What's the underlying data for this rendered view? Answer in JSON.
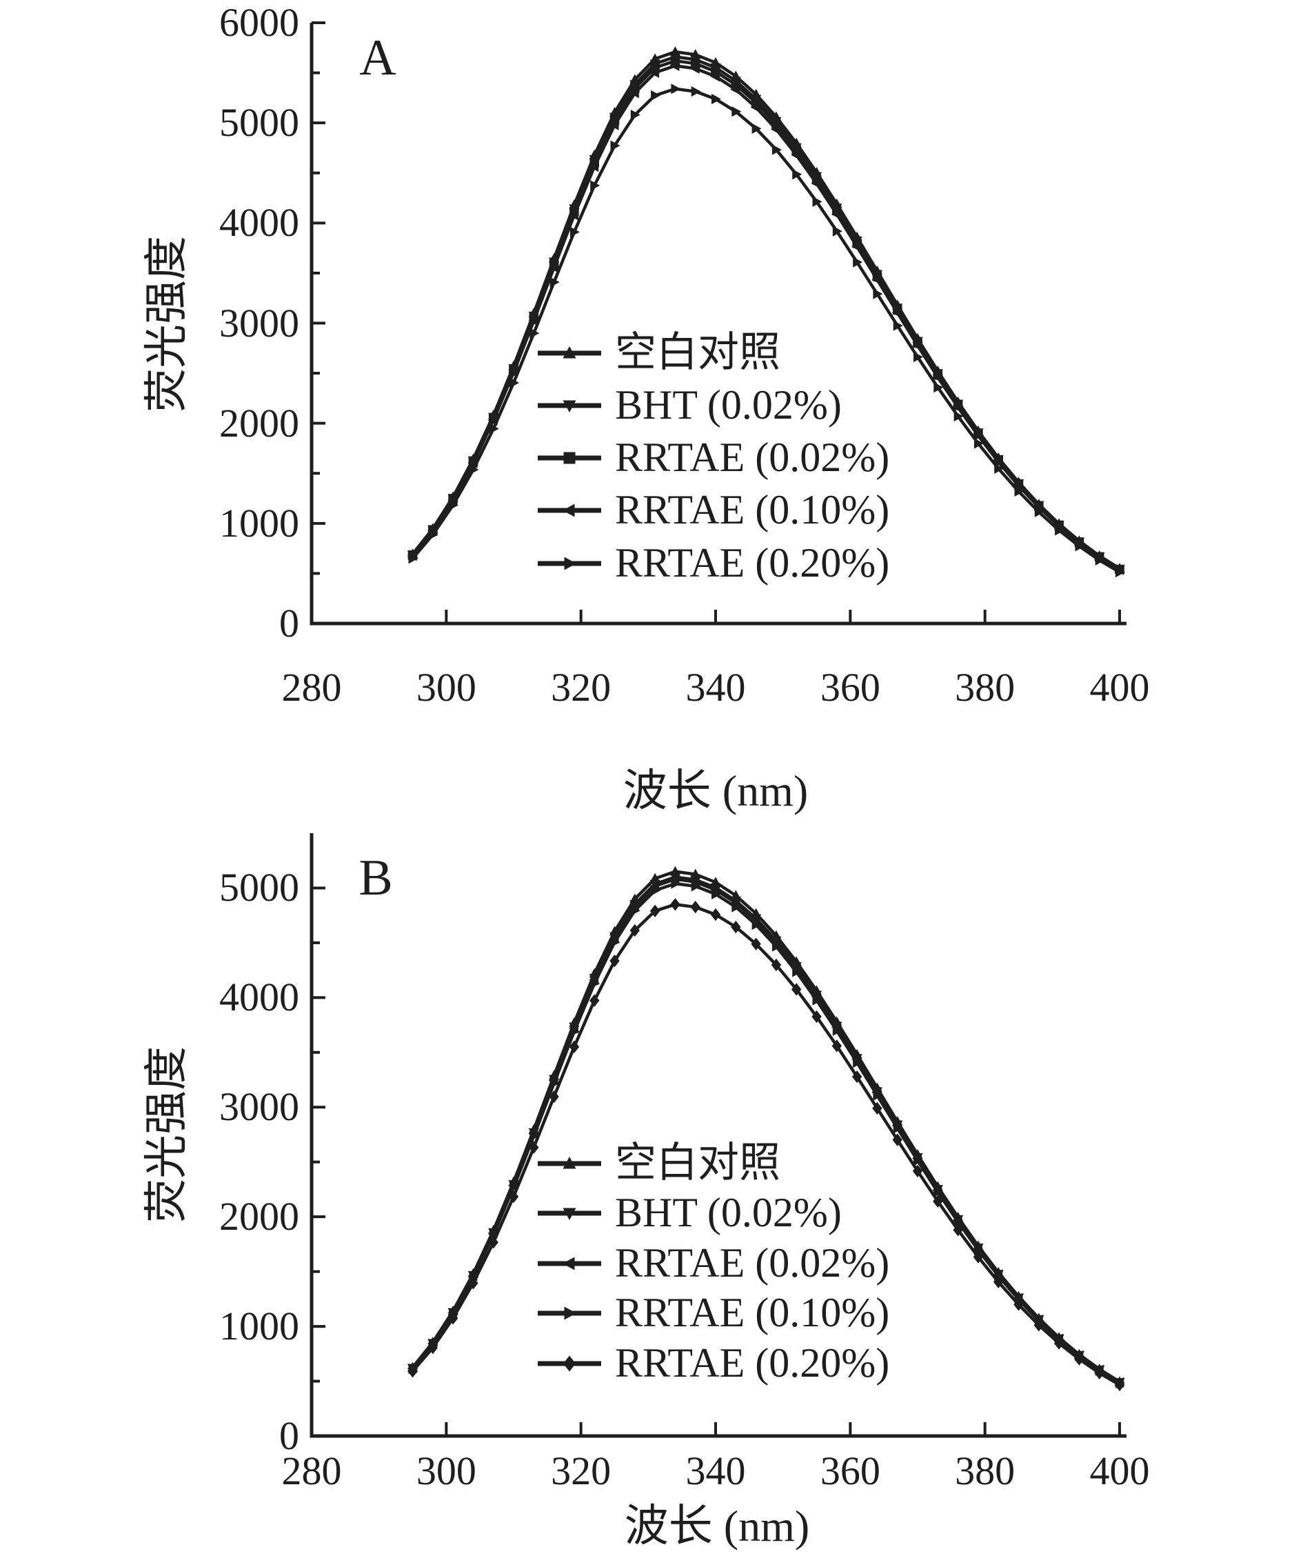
{
  "colors": {
    "ink": "#1e1e1e",
    "background": "#ffffff"
  },
  "chart_data": [
    {
      "type": "line",
      "panel_label": "A",
      "xlabel": "波长 (nm)",
      "ylabel": "荧光强度",
      "xlim": [
        280,
        400
      ],
      "ylim": [
        0,
        6000
      ],
      "xticks": [
        280,
        300,
        320,
        340,
        360,
        380,
        400
      ],
      "yticks": [
        0,
        1000,
        2000,
        3000,
        4000,
        5000,
        6000
      ],
      "minor_yticks": [
        500,
        1500,
        2500,
        3500,
        4500,
        5500
      ],
      "grid": false,
      "legend_position": "inside-right-middle",
      "x": [
        295,
        298,
        301,
        304,
        307,
        310,
        313,
        316,
        319,
        322,
        325,
        328,
        331,
        334,
        337,
        340,
        343,
        346,
        349,
        352,
        355,
        358,
        361,
        364,
        367,
        370,
        373,
        376,
        379,
        382,
        385,
        388,
        391,
        394,
        397,
        400
      ],
      "series": [
        {
          "name": "空白对照",
          "marker": "triangle-up",
          "color": "#1e1e1e",
          "values": [
            694,
            948,
            1264,
            1642,
            2080,
            2571,
            3100,
            3645,
            4181,
            4678,
            5104,
            5432,
            5639,
            5710,
            5682,
            5601,
            5467,
            5285,
            5060,
            4797,
            4505,
            4190,
            3859,
            3520,
            3181,
            2846,
            2521,
            2213,
            1923,
            1654,
            1411,
            1191,
            996,
            825,
            676,
            549
          ]
        },
        {
          "name": "BHT (0.02%)",
          "marker": "triangle-down",
          "color": "#1e1e1e",
          "values": [
            688,
            940,
            1253,
            1628,
            2062,
            2549,
            3073,
            3613,
            4144,
            4637,
            5059,
            5384,
            5590,
            5660,
            5632,
            5552,
            5419,
            5239,
            5016,
            4755,
            4466,
            4153,
            3825,
            3489,
            3153,
            2821,
            2499,
            2194,
            1906,
            1640,
            1399,
            1181,
            987,
            818,
            670,
            544
          ]
        },
        {
          "name": "RRTAE (0.02%)",
          "marker": "square",
          "color": "#1e1e1e",
          "values": [
            683,
            933,
            1244,
            1616,
            2047,
            2530,
            3051,
            3588,
            4115,
            4604,
            5024,
            5346,
            5550,
            5620,
            5592,
            5513,
            5380,
            5202,
            4980,
            4721,
            4434,
            4124,
            3798,
            3465,
            3131,
            2801,
            2481,
            2178,
            1893,
            1628,
            1389,
            1172,
            980,
            812,
            665,
            540
          ]
        },
        {
          "name": "RRTAE (0.10%)",
          "marker": "triangle-left",
          "color": "#1e1e1e",
          "values": [
            677,
            925,
            1233,
            1602,
            2029,
            2508,
            3024,
            3556,
            4078,
            4563,
            4979,
            5299,
            5501,
            5570,
            5543,
            5464,
            5333,
            5155,
            4936,
            4679,
            4395,
            4087,
            3764,
            3434,
            3103,
            2776,
            2459,
            2159,
            1876,
            1613,
            1376,
            1162,
            972,
            805,
            659,
            536
          ]
        },
        {
          "name": "RRTAE (0.20%)",
          "marker": "triangle-right",
          "color": "#1e1e1e",
          "values": [
            649,
            887,
            1182,
            1536,
            1945,
            2404,
            2899,
            3409,
            3910,
            4375,
            4773,
            5080,
            5274,
            5340,
            5314,
            5238,
            5113,
            4943,
            4732,
            4486,
            4213,
            3918,
            3609,
            3292,
            2975,
            2662,
            2358,
            2070,
            1798,
            1547,
            1320,
            1114,
            931,
            772,
            632,
            513
          ]
        }
      ]
    },
    {
      "type": "line",
      "panel_label": "B",
      "xlabel": "波长 (nm)",
      "ylabel": "荧光强度",
      "xlim": [
        280,
        400
      ],
      "ylim": [
        0,
        5500
      ],
      "xticks": [
        280,
        300,
        320,
        340,
        360,
        380,
        400
      ],
      "yticks": [
        0,
        1000,
        2000,
        3000,
        4000,
        5000
      ],
      "minor_yticks": [
        500,
        1500,
        2500,
        3500,
        4500
      ],
      "grid": false,
      "legend_position": "inside-right-middle",
      "x": [
        295,
        298,
        301,
        304,
        307,
        310,
        313,
        316,
        319,
        322,
        325,
        328,
        331,
        334,
        337,
        340,
        343,
        346,
        349,
        352,
        355,
        358,
        361,
        364,
        367,
        370,
        373,
        376,
        379,
        382,
        385,
        388,
        391,
        394,
        397,
        400
      ],
      "series": [
        {
          "name": "空白对照",
          "marker": "triangle-up",
          "color": "#1e1e1e",
          "values": [
            626,
            855,
            1140,
            1481,
            1876,
            2319,
            2796,
            3288,
            3771,
            4219,
            4603,
            4899,
            5086,
            5150,
            5125,
            5052,
            4931,
            4767,
            4564,
            4327,
            4063,
            3779,
            3481,
            3175,
            2869,
            2567,
            2274,
            1996,
            1734,
            1492,
            1273,
            1074,
            898,
            744,
            610,
            495
          ]
        },
        {
          "name": "BHT (0.02%)",
          "marker": "triangle-down",
          "color": "#1e1e1e",
          "values": [
            620,
            847,
            1129,
            1467,
            1858,
            2296,
            2769,
            3256,
            3734,
            4178,
            4558,
            4851,
            5037,
            5100,
            5075,
            5003,
            4883,
            4721,
            4520,
            4285,
            4024,
            3742,
            3447,
            3144,
            2841,
            2542,
            2252,
            1977,
            1717,
            1477,
            1261,
            1064,
            889,
            737,
            604,
            490
          ]
        },
        {
          "name": "RRTAE (0.02%)",
          "marker": "triangle-left",
          "color": "#1e1e1e",
          "values": [
            617,
            843,
            1125,
            1461,
            1851,
            2287,
            2758,
            3243,
            3720,
            4162,
            4540,
            4832,
            5017,
            5080,
            5055,
            4983,
            4864,
            4702,
            4502,
            4268,
            4008,
            3728,
            3434,
            3132,
            2830,
            2532,
            2243,
            1969,
            1710,
            1472,
            1256,
            1059,
            886,
            734,
            602,
            488
          ]
        },
        {
          "name": "RRTAE (0.10%)",
          "marker": "triangle-right",
          "color": "#1e1e1e",
          "values": [
            613,
            837,
            1116,
            1449,
            1836,
            2269,
            2736,
            3218,
            3691,
            4129,
            4505,
            4794,
            4977,
            5040,
            5016,
            4944,
            4826,
            4665,
            4467,
            4235,
            3976,
            3698,
            3407,
            3107,
            2808,
            2512,
            2225,
            1953,
            1697,
            1460,
            1246,
            1051,
            879,
            728,
            597,
            484
          ]
        },
        {
          "name": "RRTAE (0.20%)",
          "marker": "diamond",
          "color": "#1e1e1e",
          "values": [
            590,
            805,
            1074,
            1395,
            1767,
            2184,
            2633,
            3096,
            3551,
            3973,
            4335,
            4613,
            4790,
            4850,
            4826,
            4757,
            4644,
            4489,
            4298,
            4075,
            3826,
            3559,
            3278,
            2990,
            2702,
            2417,
            2141,
            1880,
            1633,
            1405,
            1199,
            1011,
            846,
            701,
            574,
            466
          ]
        }
      ]
    }
  ]
}
